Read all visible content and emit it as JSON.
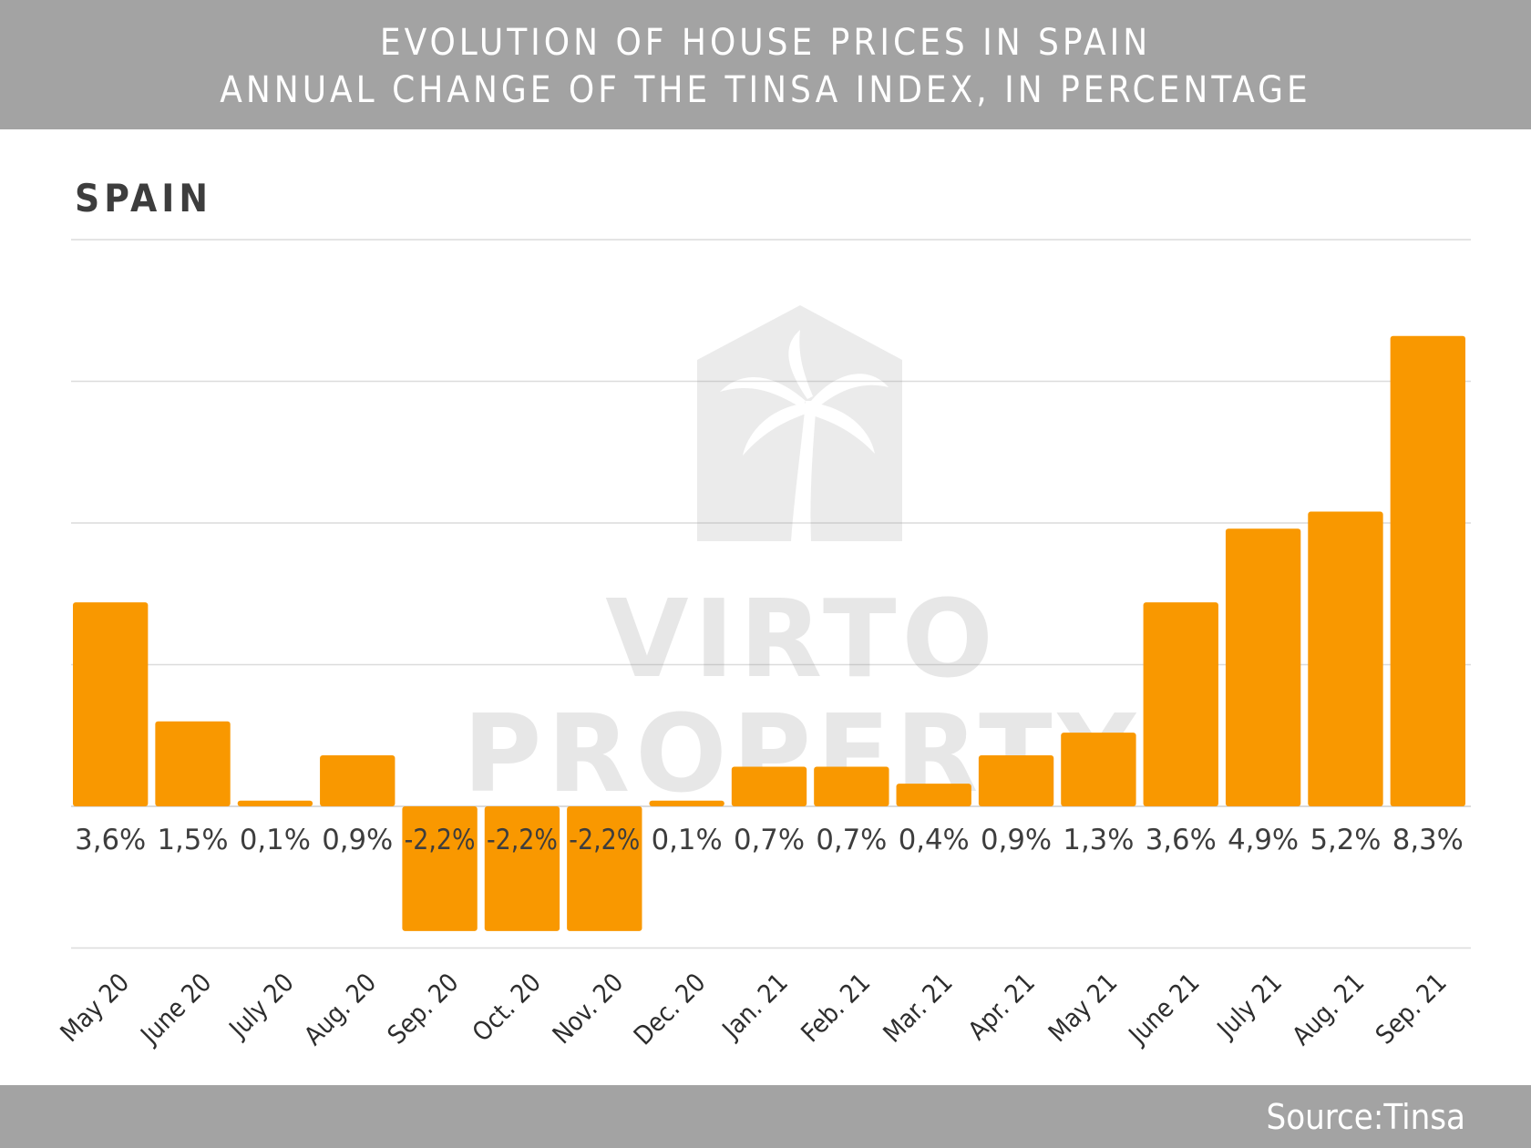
{
  "header": {
    "title": "EVOLUTION OF HOUSE PRICES IN SPAIN",
    "subtitle": "ANNUAL CHANGE OF THE TINSA INDEX, IN PERCENTAGE"
  },
  "region_label": "SPAIN",
  "watermark": {
    "line1": "VIRTO",
    "line2": "PROPERTY",
    "icon": "house-palm-icon"
  },
  "footer": {
    "source": "Source:Tinsa"
  },
  "colors": {
    "bar": "#f99800",
    "header_bg": "#a3a3a3",
    "grid": "#dcdcdc",
    "label_text": "#3d3d3d"
  },
  "chart_data": {
    "type": "bar",
    "categories": [
      "May 20",
      "June 20",
      "July 20",
      "Aug. 20",
      "Sep. 20",
      "Oct. 20",
      "Nov. 20",
      "Dec. 20",
      "Jan. 21",
      "Feb. 21",
      "Mar. 21",
      "Apr. 21",
      "May 21",
      "June 21",
      "July 21",
      "Aug. 21",
      "Sep. 21"
    ],
    "values": [
      3.6,
      1.5,
      0.1,
      0.9,
      -2.2,
      -2.2,
      -2.2,
      0.1,
      0.7,
      0.7,
      0.4,
      0.9,
      1.3,
      3.6,
      4.9,
      5.2,
      8.3
    ],
    "value_labels": [
      "3,6%",
      "1,5%",
      "0,1%",
      "0,9%",
      "-2,2%",
      "-2,2%",
      "-2,2%",
      "0,1%",
      "0,7%",
      "0,7%",
      "0,4%",
      "0,9%",
      "1,3%",
      "3,6%",
      "4,9%",
      "5,2%",
      "8,3%"
    ],
    "title": "EVOLUTION OF HOUSE PRICES IN SPAIN",
    "subtitle": "ANNUAL CHANGE OF THE TINSA INDEX, IN PERCENTAGE",
    "xlabel": "",
    "ylabel": "",
    "ylim": [
      -2.5,
      10
    ],
    "grid": true,
    "legend": "none"
  }
}
